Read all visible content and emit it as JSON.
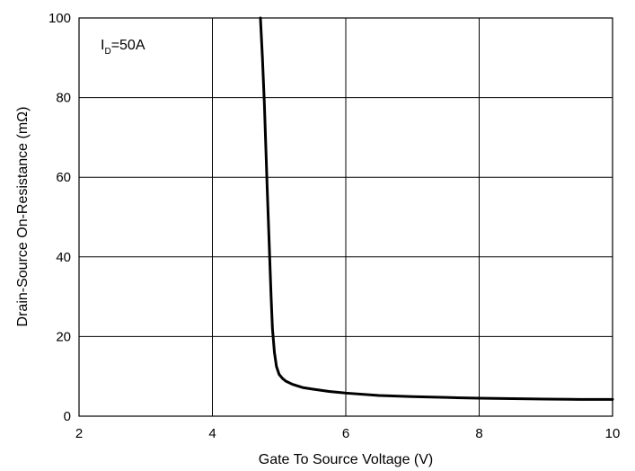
{
  "chart_data": {
    "type": "line",
    "title": "",
    "xlabel": "Gate To Source Voltage (V)",
    "ylabel": "Drain-Source On-Resistance (mΩ)",
    "xlim": [
      2,
      10
    ],
    "ylim": [
      0,
      100
    ],
    "xticks": [
      "2",
      "4",
      "6",
      "8",
      "10"
    ],
    "yticks": [
      "0",
      "20",
      "40",
      "60",
      "80",
      "100"
    ],
    "grid": true,
    "annotation": {
      "main": "I",
      "sub": "D",
      "rest": "=50A"
    },
    "series": [
      {
        "x": [
          4.72,
          4.75,
          4.78,
          4.8,
          4.82,
          4.85,
          4.88,
          4.9,
          4.93,
          4.96,
          5.0,
          5.05,
          5.1,
          5.2,
          5.35,
          5.5,
          5.75,
          6.0,
          6.5,
          7.0,
          7.5,
          8.0,
          8.5,
          9.0,
          9.5,
          10.0
        ],
        "y": [
          100,
          90,
          78,
          68,
          58,
          44,
          30,
          22,
          16,
          12.5,
          10.5,
          9.5,
          8.8,
          8.0,
          7.2,
          6.8,
          6.2,
          5.8,
          5.2,
          4.9,
          4.7,
          4.5,
          4.4,
          4.3,
          4.2,
          4.2
        ]
      }
    ]
  }
}
